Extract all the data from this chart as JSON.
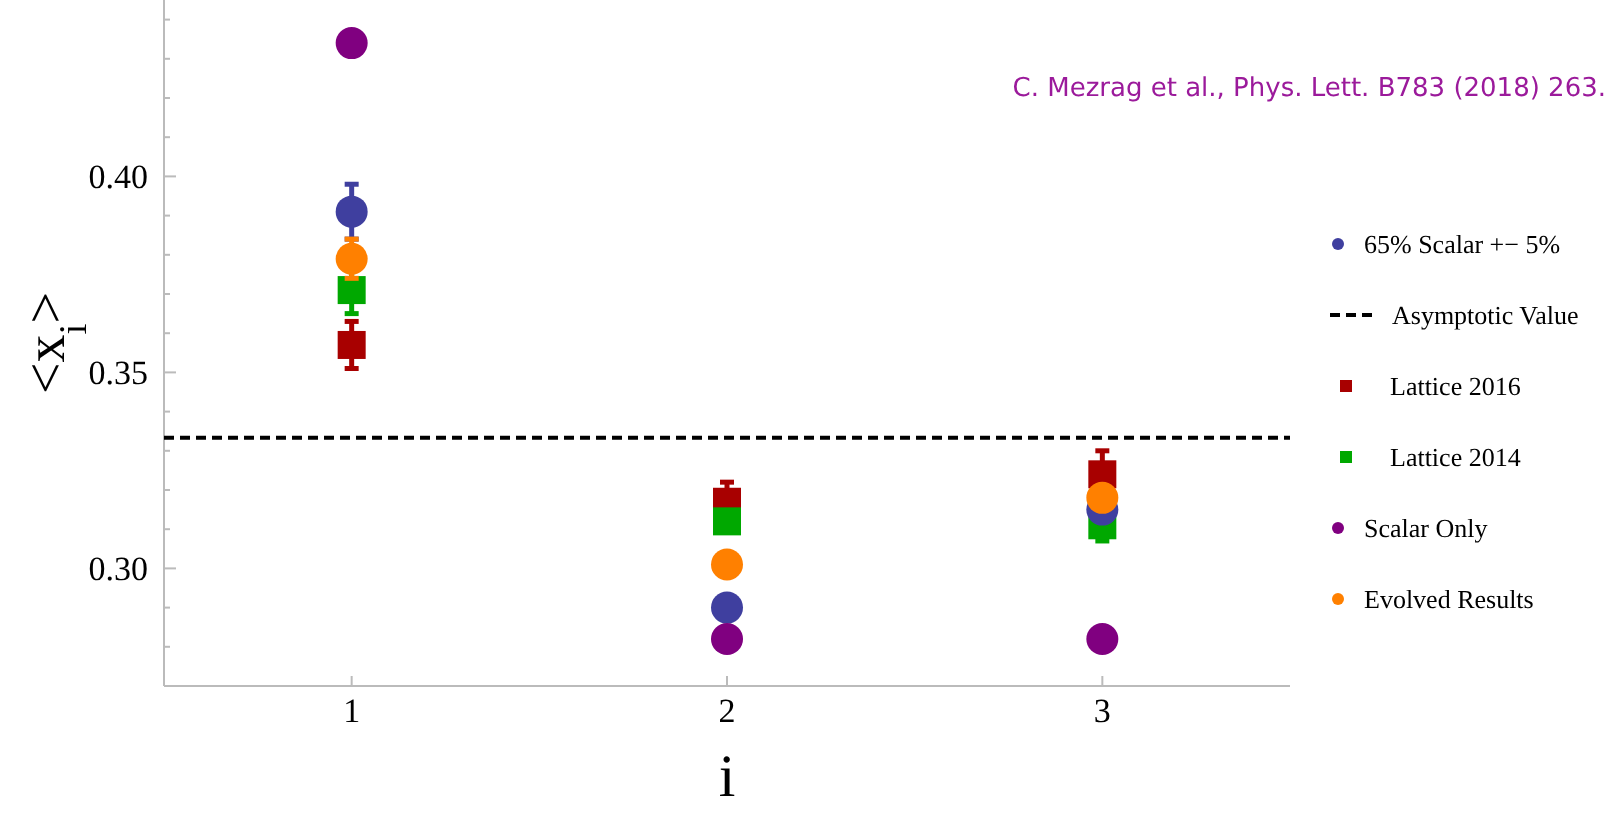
{
  "chart_data": {
    "type": "scatter",
    "x": [
      1,
      2,
      3
    ],
    "series": [
      {
        "name": "65% Scalar +− 5%",
        "color": "#3f3f9f",
        "marker": "circle",
        "values": [
          0.391,
          0.29,
          0.315
        ],
        "errors": [
          0.007,
          null,
          null
        ]
      },
      {
        "name": "Lattice 2016",
        "color": "#a80000",
        "marker": "square",
        "values": [
          0.357,
          0.317,
          0.324
        ],
        "errors": [
          0.006,
          0.005,
          0.006
        ]
      },
      {
        "name": "Lattice 2014",
        "color": "#00a800",
        "marker": "square",
        "values": [
          0.371,
          0.312,
          0.311
        ],
        "errors": [
          0.006,
          null,
          0.004
        ]
      },
      {
        "name": "Scalar Only",
        "color": "#800080",
        "marker": "circle",
        "values": [
          0.434,
          0.282,
          0.282
        ]
      },
      {
        "name": "Evolved Results",
        "color": "#ff8000",
        "marker": "circle",
        "values": [
          0.379,
          0.301,
          0.318
        ],
        "errors": [
          0.005,
          null,
          null
        ]
      }
    ],
    "ref_lines": [
      {
        "axis": "y",
        "value": 0.3333,
        "label": "Asymptotic Value",
        "color": "#000000",
        "line_style": "dashed"
      }
    ],
    "xlabel": "i",
    "ylabel": "<x$_{i}$>",
    "xlim": [
      0.5,
      3.5
    ],
    "xticks": [
      1,
      2,
      3
    ],
    "ylim": [
      0.27,
      0.445
    ],
    "yticks": [
      {
        "value": 0.28,
        "label": null
      },
      {
        "value": 0.29,
        "label": null
      },
      {
        "value": 0.3,
        "label": "0.30"
      },
      {
        "value": 0.31,
        "label": null
      },
      {
        "value": 0.32,
        "label": null
      },
      {
        "value": 0.33,
        "label": null
      },
      {
        "value": 0.34,
        "label": null
      },
      {
        "value": 0.35,
        "label": "0.35"
      },
      {
        "value": 0.36,
        "label": null
      },
      {
        "value": 0.37,
        "label": null
      },
      {
        "value": 0.38,
        "label": null
      },
      {
        "value": 0.39,
        "label": null
      },
      {
        "value": 0.4,
        "label": "0.40"
      },
      {
        "value": 0.41,
        "label": null
      },
      {
        "value": 0.42,
        "label": null
      },
      {
        "value": 0.43,
        "label": null
      },
      {
        "value": 0.44,
        "label": null
      }
    ],
    "annotations": [
      "C. Mezrag et al., Phys. Lett. B783 (2018) 263."
    ],
    "legend": "right",
    "grid": false
  }
}
